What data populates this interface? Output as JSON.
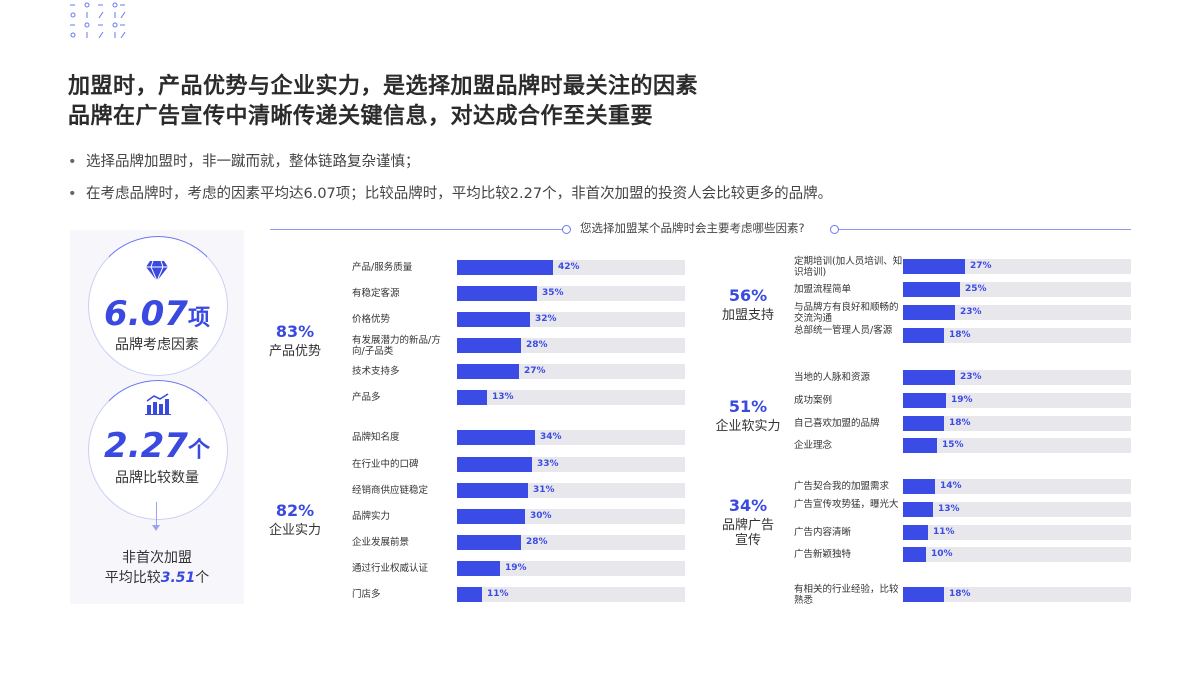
{
  "title": {
    "line1": "加盟时，产品优势与企业实力，是选择加盟品牌时最关注的因素",
    "line2": "品牌在广告宣传中清晰传递关键信息，对达成合作至关重要"
  },
  "bullets": [
    "选择品牌加盟时，非一蹴而就，整体链路复杂谨慎；",
    "在考虑品牌时，考虑的因素平均达6.07项；比较品牌时，平均比较2.27个，非首次加盟的投资人会比较更多的品牌。"
  ],
  "side": {
    "stat1_value": "6.07",
    "stat1_unit": "项",
    "stat1_label": "品牌考虑因素",
    "stat2_value": "2.27",
    "stat2_unit": "个",
    "stat2_label": "品牌比较数量",
    "bottom_line1": "非首次加盟",
    "bottom_prefix": "平均比较",
    "bottom_value": "3.51",
    "bottom_unit": "个",
    "icon1": "diamond-icon",
    "icon2": "growth-chart-icon",
    "accent": "#3a4ae0"
  },
  "question": "您选择加盟某个品牌时会主要考虑哪些因素?",
  "chart_data": {
    "type": "bar",
    "orientation": "horizontal",
    "unit": "%",
    "xlim": [
      0,
      100
    ],
    "bar_color": "#3b4be6",
    "track_color": "#e8e8ec",
    "groups": [
      {
        "pct": "83%",
        "name": "产品优势",
        "items": [
          {
            "label": "产品/服务质量",
            "value": 42
          },
          {
            "label": "有稳定客源",
            "value": 35
          },
          {
            "label": "价格优势",
            "value": 32
          },
          {
            "label": "有发展潜力的新品/方向/子品类",
            "value": 28
          },
          {
            "label": "技术支持多",
            "value": 27
          },
          {
            "label": "产品多",
            "value": 13
          }
        ]
      },
      {
        "pct": "82%",
        "name": "企业实力",
        "items": [
          {
            "label": "品牌知名度",
            "value": 34
          },
          {
            "label": "在行业中的口碑",
            "value": 33
          },
          {
            "label": "经销商供应链稳定",
            "value": 31
          },
          {
            "label": "品牌实力",
            "value": 30
          },
          {
            "label": "企业发展前景",
            "value": 28
          },
          {
            "label": "通过行业权威认证",
            "value": 19
          },
          {
            "label": "门店多",
            "value": 11
          }
        ]
      },
      {
        "pct": "56%",
        "name": "加盟支持",
        "items": [
          {
            "label": "定期培训(加人员培训、知识培训)",
            "value": 27
          },
          {
            "label": "加盟流程简单",
            "value": 25
          },
          {
            "label": "与品牌方有良好和顺畅的交流沟通",
            "value": 23
          },
          {
            "label": "总部统一管理人员/客源",
            "value": 18
          }
        ]
      },
      {
        "pct": "51%",
        "name": "企业软实力",
        "items": [
          {
            "label": "当地的人脉和资源",
            "value": 23
          },
          {
            "label": "成功案例",
            "value": 19
          },
          {
            "label": "自己喜欢加盟的品牌",
            "value": 18
          },
          {
            "label": "企业理念",
            "value": 15
          }
        ]
      },
      {
        "pct": "34%",
        "name": "品牌广告宣传",
        "items": [
          {
            "label": "广告契合我的加盟需求",
            "value": 14
          },
          {
            "label": "广告宣传攻势猛，曝光大",
            "value": 13
          },
          {
            "label": "广告内容清晰",
            "value": 11
          },
          {
            "label": "广告新颖独特",
            "value": 10
          }
        ]
      },
      {
        "pct": "",
        "name": "",
        "items": [
          {
            "label": "有相关的行业经验，比较熟悉",
            "value": 18
          }
        ]
      }
    ]
  }
}
